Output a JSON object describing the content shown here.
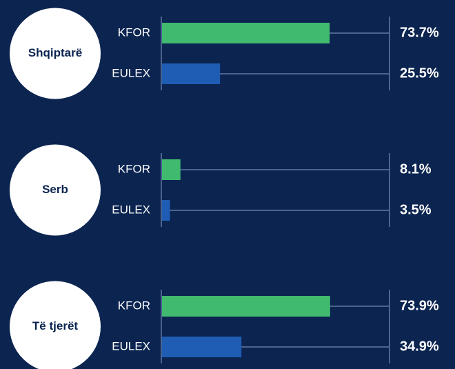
{
  "chart_data": {
    "type": "bar",
    "categories": [
      "Shqiptarë",
      "Serb",
      "Të tjerët"
    ],
    "series": [
      {
        "name": "KFOR",
        "color": "#3fba6e",
        "values": [
          73.7,
          8.1,
          73.9
        ],
        "value_labels": [
          "73.7%",
          "8.1%",
          "73.9%"
        ]
      },
      {
        "name": "EULEX",
        "color": "#1f5db4",
        "values": [
          25.5,
          3.5,
          34.9
        ],
        "value_labels": [
          "25.5%",
          "3.5%",
          "34.9%"
        ]
      }
    ],
    "xlim": [
      0,
      100
    ]
  }
}
